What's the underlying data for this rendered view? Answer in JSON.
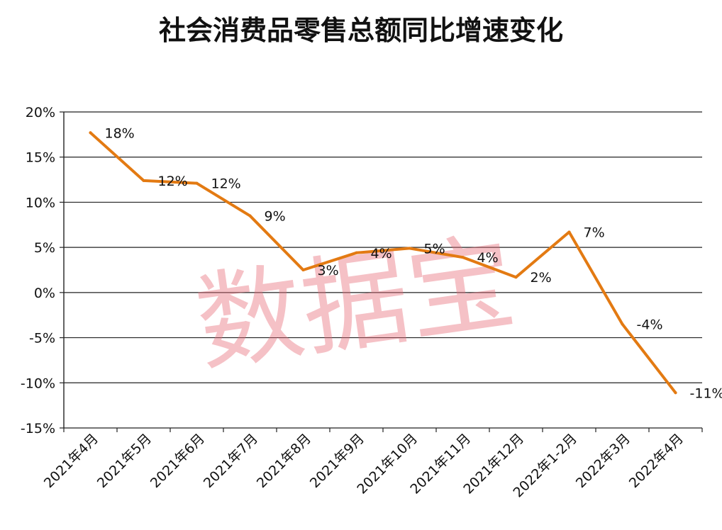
{
  "chart_data": {
    "type": "line",
    "title": "社会消费品零售总额同比增速变化",
    "categories": [
      "2021年4月",
      "2021年5月",
      "2021年6月",
      "2021年7月",
      "2021年8月",
      "2021年9月",
      "2021年10月",
      "2021年11月",
      "2021年12月",
      "2022年1-2月",
      "2022年3月",
      "2022年4月"
    ],
    "series": [
      {
        "values": [
          17.7,
          12.4,
          12.1,
          8.5,
          2.5,
          4.4,
          4.9,
          3.9,
          1.7,
          6.7,
          -3.5,
          -11.1
        ],
        "color": "#e37a12"
      }
    ],
    "data_labels": [
      "18%",
      "12%",
      "12%",
      "9%",
      "3%",
      "4%",
      "5%",
      "4%",
      "2%",
      "7%",
      "-4%",
      "-11%"
    ],
    "y_ticks": [
      "20%",
      "15%",
      "10%",
      "5%",
      "0%",
      "-5%",
      "-10%",
      "-15%"
    ],
    "ylim": [
      -15,
      20
    ],
    "grid": true,
    "legend": "none",
    "watermark": "数据宝",
    "colors": {
      "line": "#e37a12",
      "grid": "#222222",
      "watermark": "#e86b78"
    }
  }
}
